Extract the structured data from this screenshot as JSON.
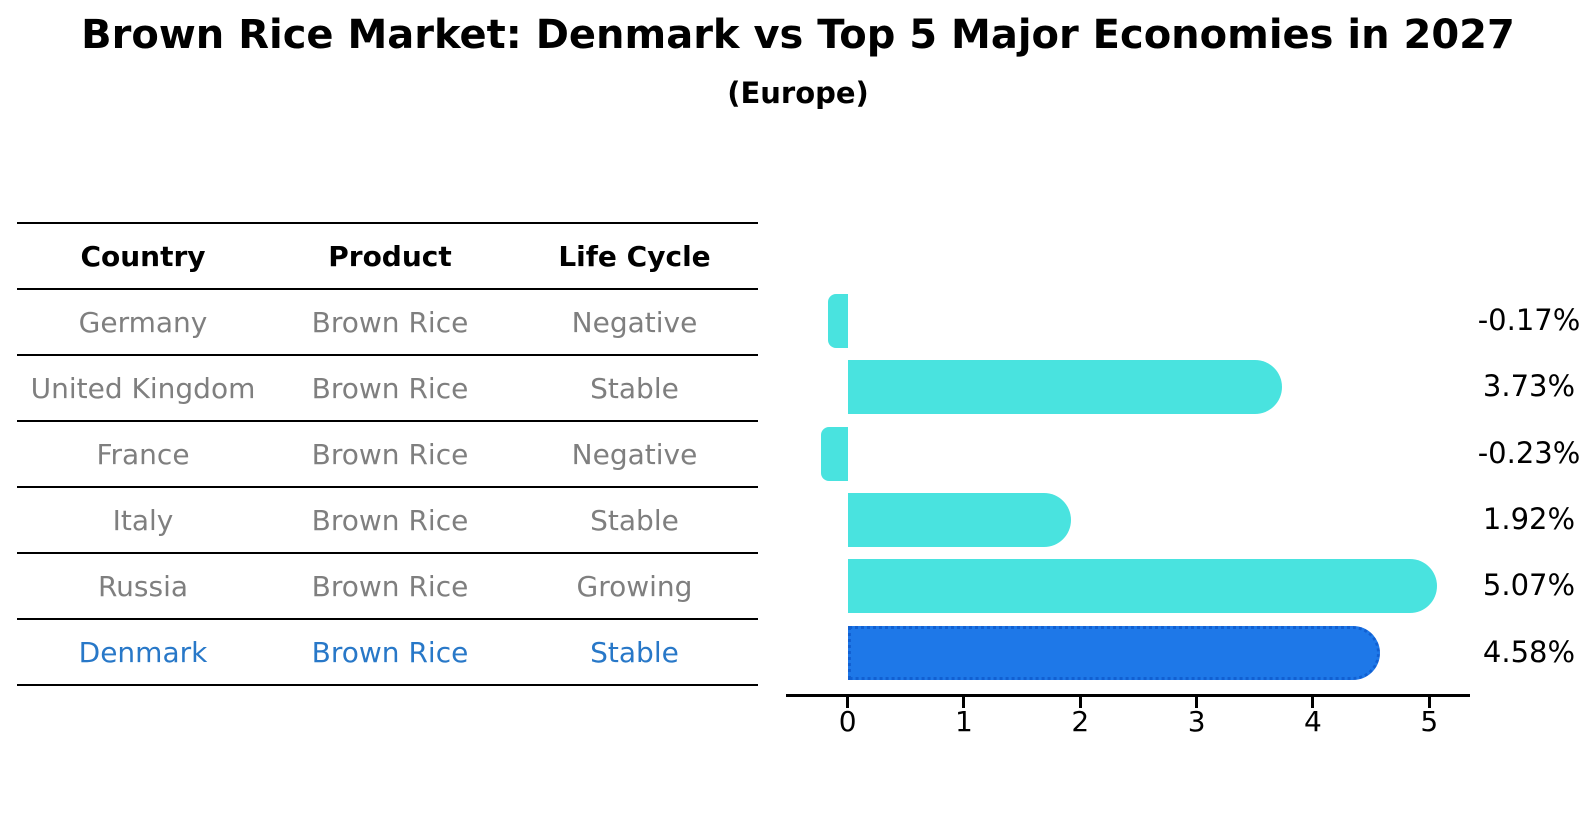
{
  "title": "Brown Rice Market: Denmark vs Top 5 Major Economies in 2027",
  "subtitle": "(Europe)",
  "table": {
    "headers": [
      "Country",
      "Product",
      "Life Cycle"
    ],
    "rows": [
      {
        "country": "Germany",
        "product": "Brown Rice",
        "life_cycle": "Negative",
        "highlight": false
      },
      {
        "country": "United Kingdom",
        "product": "Brown Rice",
        "life_cycle": "Stable",
        "highlight": false
      },
      {
        "country": "France",
        "product": "Brown Rice",
        "life_cycle": "Negative",
        "highlight": false
      },
      {
        "country": "Italy",
        "product": "Brown Rice",
        "life_cycle": "Stable",
        "highlight": false
      },
      {
        "country": "Russia",
        "product": "Brown Rice",
        "life_cycle": "Growing",
        "highlight": false
      },
      {
        "country": "Denmark",
        "product": "Brown Rice",
        "life_cycle": "Stable",
        "highlight": true
      }
    ]
  },
  "chart_data": {
    "type": "bar",
    "orientation": "horizontal",
    "categories": [
      "Germany",
      "United Kingdom",
      "France",
      "Italy",
      "Russia",
      "Denmark"
    ],
    "values": [
      -0.17,
      3.73,
      -0.23,
      1.92,
      5.07,
      4.58
    ],
    "value_labels": [
      "-0.17%",
      "3.73%",
      "-0.23%",
      "1.92%",
      "5.07%",
      "4.58%"
    ],
    "x_ticks": [
      "0",
      "1",
      "2",
      "3",
      "4",
      "5"
    ],
    "xlim": [
      -0.53,
      5.35
    ],
    "grid": false,
    "legend": false,
    "bar_color": "#49e3df",
    "highlight_color": "#1e78e8",
    "highlight_index": 5
  },
  "colors": {
    "row_text": "#7f7f7f",
    "highlight_text": "#2878c8",
    "header_text": "#000000",
    "axis": "#000000"
  }
}
